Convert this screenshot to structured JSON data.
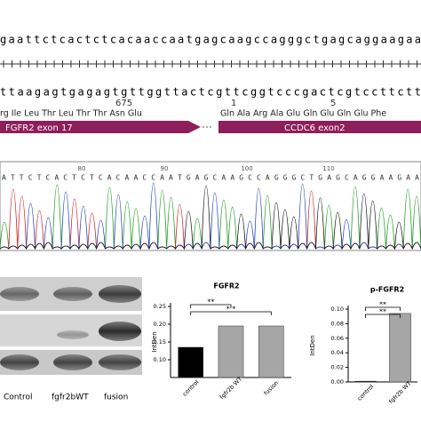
{
  "sequence": {
    "top": "gaattctcactctcacaaccaatgagcaagccagggctgagcaggaagaa",
    "bottom": "ttaagagtgagagtgttggttactcgttcggtcccgactcgtccttctt",
    "positions": [
      675,
      1,
      5
    ],
    "aa_left": "rg  Ile  Leu  Thr  Leu  Thr  Thr  Asn  Glu",
    "aa_right": "Gln  Ala  Arg  Ala  Glu  Gln  Glu  Gln  Glu  Phe",
    "exon_left": "FGFR2  exon 17",
    "exon_right": "CCDC6   exon2"
  },
  "chromatogram": {
    "positions": [
      80,
      90,
      100,
      110
    ],
    "bases": "ATTCTCACTCTCACAACCAATGAGCAAGCCAGGGCTGAGCAGGAAGAA"
  },
  "blot": {
    "lanes": [
      "Control",
      "fgfr2bWT",
      "fusion"
    ]
  },
  "chart_data": [
    {
      "type": "bar",
      "title": "FGFR2",
      "y_label": "IntDen",
      "categories": [
        "control",
        "fgfr2b WT",
        "fusion"
      ],
      "values": [
        0.135,
        0.195,
        0.195
      ],
      "colors": [
        "#000000",
        "#a6a6a6",
        "#a6a6a6"
      ],
      "ylim": [
        0.05,
        0.25
      ],
      "yticks": [
        {
          "value": 0.1,
          "label": "0.10"
        },
        0.15,
        {
          "value": 0.2,
          "label": "0.20"
        },
        0.25
      ],
      "annotations": [
        "**",
        "* *"
      ]
    },
    {
      "type": "bar",
      "title": "p-FGFR2",
      "y_label": "IntDen",
      "categories": [
        "control",
        "fgfr2b WT"
      ],
      "values": [
        0.001,
        0.094
      ],
      "colors": [
        "#000000",
        "#a6a6a6"
      ],
      "ylim": [
        0,
        0.1
      ],
      "yticks": [
        {
          "value": 0,
          "label": "0.00"
        },
        0.02,
        0.04,
        0.06,
        0.08,
        {
          "value": 0.1,
          "label": "0.10"
        }
      ],
      "annotations": [
        "**",
        "**"
      ]
    }
  ]
}
